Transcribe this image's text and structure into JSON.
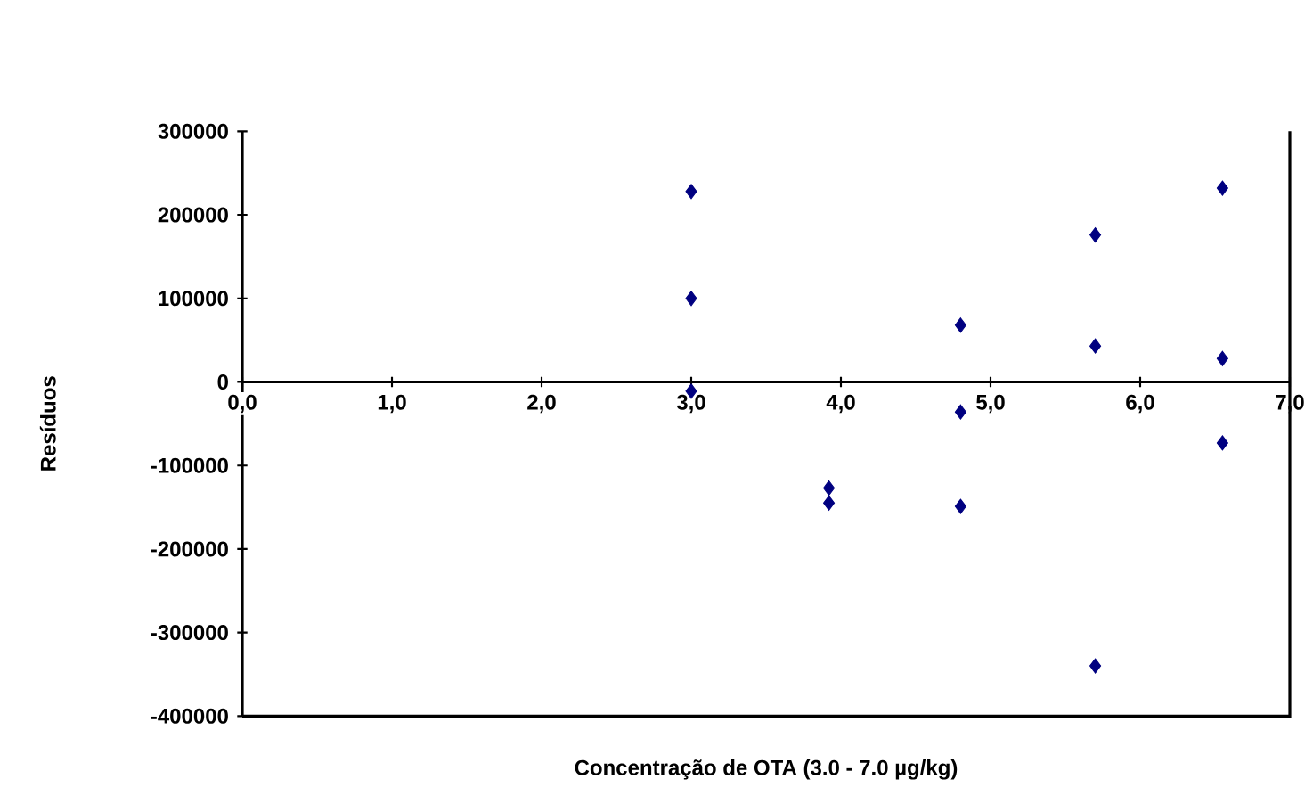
{
  "chart_data": {
    "type": "scatter",
    "xlabel": "Concentração de OTA (3.0 - 7.0 µg/kg)",
    "ylabel": "Resíduos",
    "x": [
      3.0,
      3.0,
      3.0,
      3.92,
      3.92,
      4.8,
      4.8,
      4.8,
      5.7,
      5.7,
      5.7,
      6.55,
      6.55,
      6.55
    ],
    "values": [
      228000,
      100000,
      -11000,
      -127000,
      -145000,
      68000,
      -36000,
      -149000,
      176000,
      43000,
      -340000,
      232000,
      28000,
      -73000
    ],
    "color": "#000080",
    "marker": "diamond",
    "grid": false,
    "xlim": [
      0,
      7
    ],
    "ylim": [
      -400000,
      300000
    ],
    "xticks": [
      {
        "value": 0,
        "label": "0,0"
      },
      {
        "value": 1,
        "label": "1,0"
      },
      {
        "value": 2,
        "label": "2,0"
      },
      {
        "value": 3,
        "label": "3,0"
      },
      {
        "value": 4,
        "label": "4,0"
      },
      {
        "value": 5,
        "label": "5,0"
      },
      {
        "value": 6,
        "label": "6,0"
      },
      {
        "value": 7,
        "label": "7,0"
      }
    ],
    "yticks": [
      -400000,
      -300000,
      -200000,
      -100000,
      0,
      100000,
      200000,
      300000
    ]
  }
}
